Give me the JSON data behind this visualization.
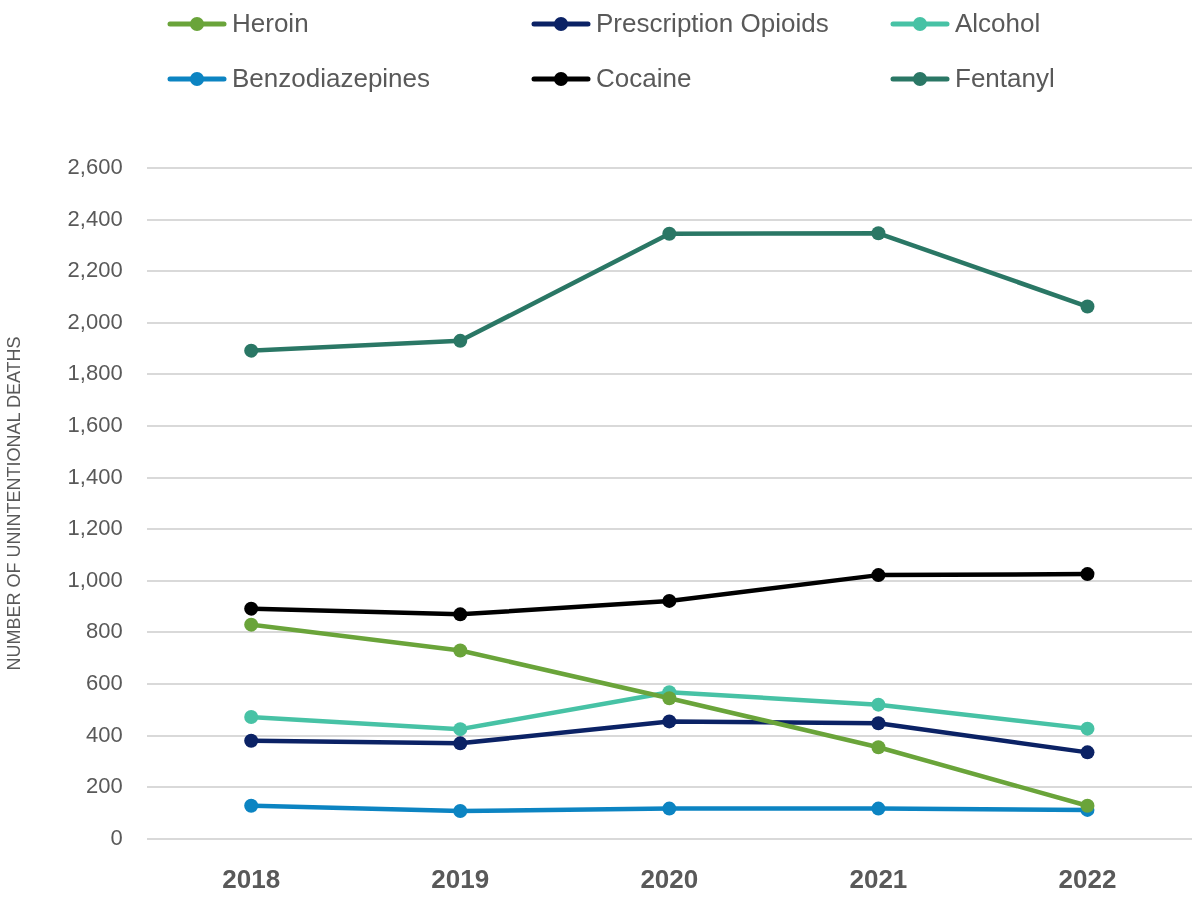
{
  "chart_data": {
    "type": "line",
    "ylabel": "NUMBER OF UNINTENTIONAL DEATHS",
    "categories": [
      "2018",
      "2019",
      "2020",
      "2021",
      "2022"
    ],
    "series": [
      {
        "name": "Heroin",
        "color": "#6aa43a",
        "values": [
          830,
          730,
          545,
          355,
          128
        ]
      },
      {
        "name": "Prescription Opioids",
        "color": "#0b2265",
        "values": [
          380,
          370,
          455,
          448,
          335
        ]
      },
      {
        "name": "Alcohol",
        "color": "#47c2a5",
        "values": [
          472,
          425,
          568,
          520,
          427
        ]
      },
      {
        "name": "Benzodiazepines",
        "color": "#0c84c2",
        "values": [
          128,
          108,
          117,
          117,
          112
        ]
      },
      {
        "name": "Cocaine",
        "color": "#000000",
        "values": [
          892,
          870,
          922,
          1022,
          1026
        ]
      },
      {
        "name": "Fentanyl",
        "color": "#2a7765",
        "values": [
          1892,
          1930,
          2345,
          2347,
          2063
        ]
      }
    ],
    "ylim": [
      0,
      2600
    ],
    "yticks": [
      0,
      200,
      400,
      600,
      800,
      {
        "value": 1000,
        "label": "1,000"
      },
      {
        "value": 1200,
        "label": "1,200"
      },
      {
        "value": 1400,
        "label": "1,400"
      },
      {
        "value": 1600,
        "label": "1,600"
      },
      {
        "value": 1800,
        "label": "1,800"
      },
      {
        "value": 2000,
        "label": "2,000"
      },
      {
        "value": 2200,
        "label": "2,200"
      },
      {
        "value": 2400,
        "label": "2,400"
      },
      {
        "value": 2600,
        "label": "2,600"
      }
    ],
    "grid": "y",
    "legend": "top",
    "marker": "circle",
    "line_style": "solid"
  }
}
